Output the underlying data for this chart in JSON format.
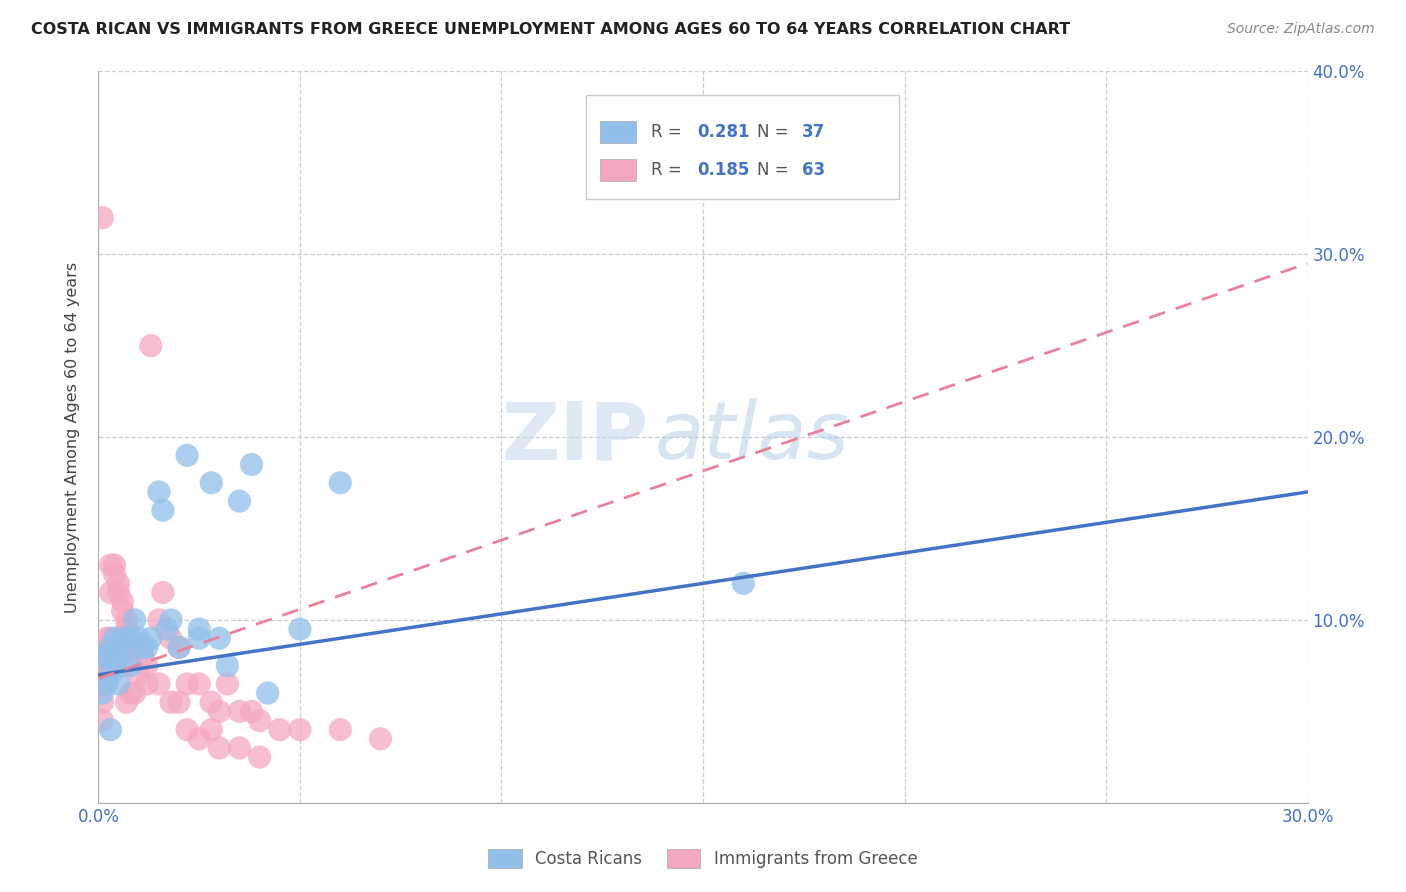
{
  "title": "COSTA RICAN VS IMMIGRANTS FROM GREECE UNEMPLOYMENT AMONG AGES 60 TO 64 YEARS CORRELATION CHART",
  "source": "Source: ZipAtlas.com",
  "ylabel": "Unemployment Among Ages 60 to 64 years",
  "xlim": [
    0.0,
    0.3
  ],
  "ylim": [
    0.0,
    0.4
  ],
  "xticks": [
    0.0,
    0.05,
    0.1,
    0.15,
    0.2,
    0.25,
    0.3
  ],
  "yticks": [
    0.0,
    0.1,
    0.2,
    0.3,
    0.4
  ],
  "color_blue": "#92BFEA",
  "color_pink": "#F4A8C0",
  "legend_color_blue": "#4472C4",
  "legend_R_blue": "0.281",
  "legend_N_blue": "37",
  "legend_R_pink": "0.185",
  "legend_N_pink": "63",
  "regression_blue": [
    0.0,
    0.07,
    0.3,
    0.17
  ],
  "regression_pink": [
    0.0,
    0.068,
    0.3,
    0.295
  ],
  "watermark_zip": "ZIP",
  "watermark_atlas": "atlas",
  "costa_ricans_x": [
    0.001,
    0.001,
    0.002,
    0.002,
    0.003,
    0.003,
    0.004,
    0.004,
    0.005,
    0.005,
    0.006,
    0.007,
    0.008,
    0.008,
    0.009,
    0.01,
    0.011,
    0.012,
    0.013,
    0.015,
    0.016,
    0.017,
    0.018,
    0.02,
    0.022,
    0.025,
    0.028,
    0.03,
    0.032,
    0.035,
    0.038,
    0.042,
    0.05,
    0.06,
    0.16,
    0.003,
    0.025
  ],
  "costa_ricans_y": [
    0.06,
    0.08,
    0.08,
    0.065,
    0.085,
    0.07,
    0.075,
    0.09,
    0.08,
    0.065,
    0.09,
    0.085,
    0.09,
    0.075,
    0.1,
    0.09,
    0.085,
    0.085,
    0.09,
    0.17,
    0.16,
    0.095,
    0.1,
    0.085,
    0.19,
    0.095,
    0.175,
    0.09,
    0.075,
    0.165,
    0.185,
    0.06,
    0.095,
    0.175,
    0.12,
    0.04,
    0.09
  ],
  "greece_x": [
    0.001,
    0.001,
    0.001,
    0.002,
    0.002,
    0.002,
    0.003,
    0.003,
    0.003,
    0.004,
    0.004,
    0.005,
    0.005,
    0.006,
    0.006,
    0.007,
    0.007,
    0.008,
    0.008,
    0.009,
    0.01,
    0.011,
    0.012,
    0.013,
    0.015,
    0.016,
    0.018,
    0.02,
    0.022,
    0.025,
    0.028,
    0.03,
    0.032,
    0.035,
    0.038,
    0.04,
    0.045,
    0.05,
    0.06,
    0.07,
    0.001,
    0.001,
    0.002,
    0.002,
    0.003,
    0.003,
    0.004,
    0.005,
    0.006,
    0.007,
    0.008,
    0.009,
    0.01,
    0.012,
    0.015,
    0.018,
    0.02,
    0.022,
    0.025,
    0.028,
    0.03,
    0.035,
    0.04
  ],
  "greece_y": [
    0.32,
    0.08,
    0.065,
    0.09,
    0.085,
    0.07,
    0.13,
    0.115,
    0.09,
    0.13,
    0.125,
    0.12,
    0.115,
    0.11,
    0.105,
    0.1,
    0.095,
    0.09,
    0.085,
    0.085,
    0.085,
    0.08,
    0.075,
    0.25,
    0.1,
    0.115,
    0.09,
    0.085,
    0.065,
    0.065,
    0.055,
    0.05,
    0.065,
    0.05,
    0.05,
    0.045,
    0.04,
    0.04,
    0.04,
    0.035,
    0.045,
    0.055,
    0.075,
    0.07,
    0.08,
    0.075,
    0.075,
    0.08,
    0.075,
    0.055,
    0.06,
    0.06,
    0.07,
    0.065,
    0.065,
    0.055,
    0.055,
    0.04,
    0.035,
    0.04,
    0.03,
    0.03,
    0.025
  ]
}
